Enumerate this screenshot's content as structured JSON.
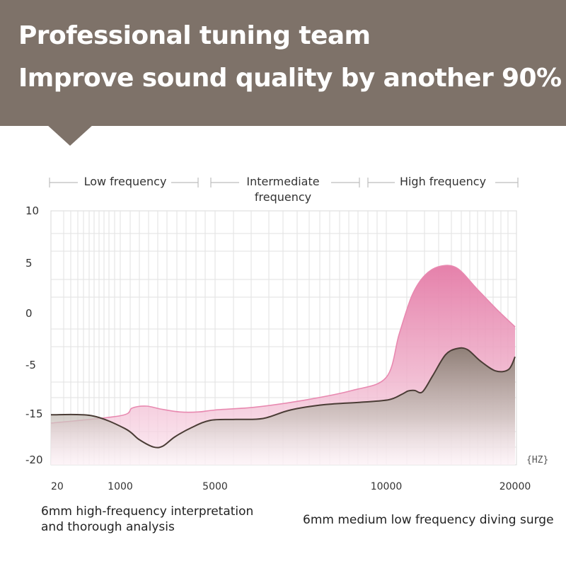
{
  "header": {
    "line1": "Professional tuning team",
    "line2": "Improve sound quality by another 90%"
  },
  "colors": {
    "banner": "#7e7269",
    "pink_fill": "#e58aaf",
    "gray_fill": "#8c8076",
    "grid": "#dcdcdc"
  },
  "chart_data": {
    "type": "area",
    "bands": [
      {
        "label": "Low frequency",
        "x_start": 20,
        "x_end": 3000
      },
      {
        "label": "Intermediate frequency",
        "x_start": 3000,
        "x_end": 9000
      },
      {
        "label": "High frequency",
        "x_start": 9000,
        "x_end": 20000
      }
    ],
    "xlabel": "",
    "x_unit": "{HZ}",
    "ylabel": "",
    "xlim": [
      20,
      20000
    ],
    "ylim": [
      -20,
      10
    ],
    "x_ticks": [
      20,
      1000,
      5000,
      10000,
      20000
    ],
    "y_ticks": [
      10,
      5,
      0,
      -5,
      -15,
      -20
    ],
    "grid": true,
    "series": [
      {
        "color": "#e58aaf",
        "points": [
          [
            20,
            -16
          ],
          [
            1000,
            -15.2
          ],
          [
            1500,
            -13.8
          ],
          [
            2100,
            -13.4
          ],
          [
            2700,
            -14
          ],
          [
            3500,
            -14.6
          ],
          [
            4300,
            -14.6
          ],
          [
            5000,
            -14.2
          ],
          [
            6200,
            -13.6
          ],
          [
            7600,
            -12.2
          ],
          [
            9000,
            -10.2
          ],
          [
            10000,
            -7.5
          ],
          [
            11000,
            -2
          ],
          [
            12000,
            1.8
          ],
          [
            13000,
            3.8
          ],
          [
            14200,
            4.7
          ],
          [
            15500,
            4.5
          ],
          [
            17000,
            2.5
          ],
          [
            18500,
            0.5
          ],
          [
            20000,
            -1.3
          ]
        ]
      },
      {
        "color": "#8c8076",
        "points": [
          [
            20,
            -15.1
          ],
          [
            600,
            -15.2
          ],
          [
            1200,
            -16.6
          ],
          [
            1800,
            -17.8
          ],
          [
            2400,
            -18.6
          ],
          [
            2800,
            -18.5
          ],
          [
            3300,
            -17.5
          ],
          [
            4000,
            -16.5
          ],
          [
            4800,
            -15.7
          ],
          [
            5600,
            -15.6
          ],
          [
            6400,
            -15.5
          ],
          [
            7200,
            -14.2
          ],
          [
            8200,
            -13.1
          ],
          [
            9300,
            -12.6
          ],
          [
            10200,
            -12.1
          ],
          [
            11200,
            -11
          ],
          [
            11700,
            -10.3
          ],
          [
            12200,
            -10.2
          ],
          [
            12800,
            -10.5
          ],
          [
            13600,
            -7.2
          ],
          [
            14600,
            -4
          ],
          [
            15500,
            -3.4
          ],
          [
            16300,
            -3.5
          ],
          [
            17300,
            -4.6
          ],
          [
            18500,
            -6.2
          ],
          [
            19500,
            -5.9
          ],
          [
            20000,
            -4.2
          ]
        ]
      }
    ]
  },
  "captions": {
    "left": "6mm high-frequency interpretation and thorough analysis",
    "right": "6mm medium low frequency diving surge"
  }
}
